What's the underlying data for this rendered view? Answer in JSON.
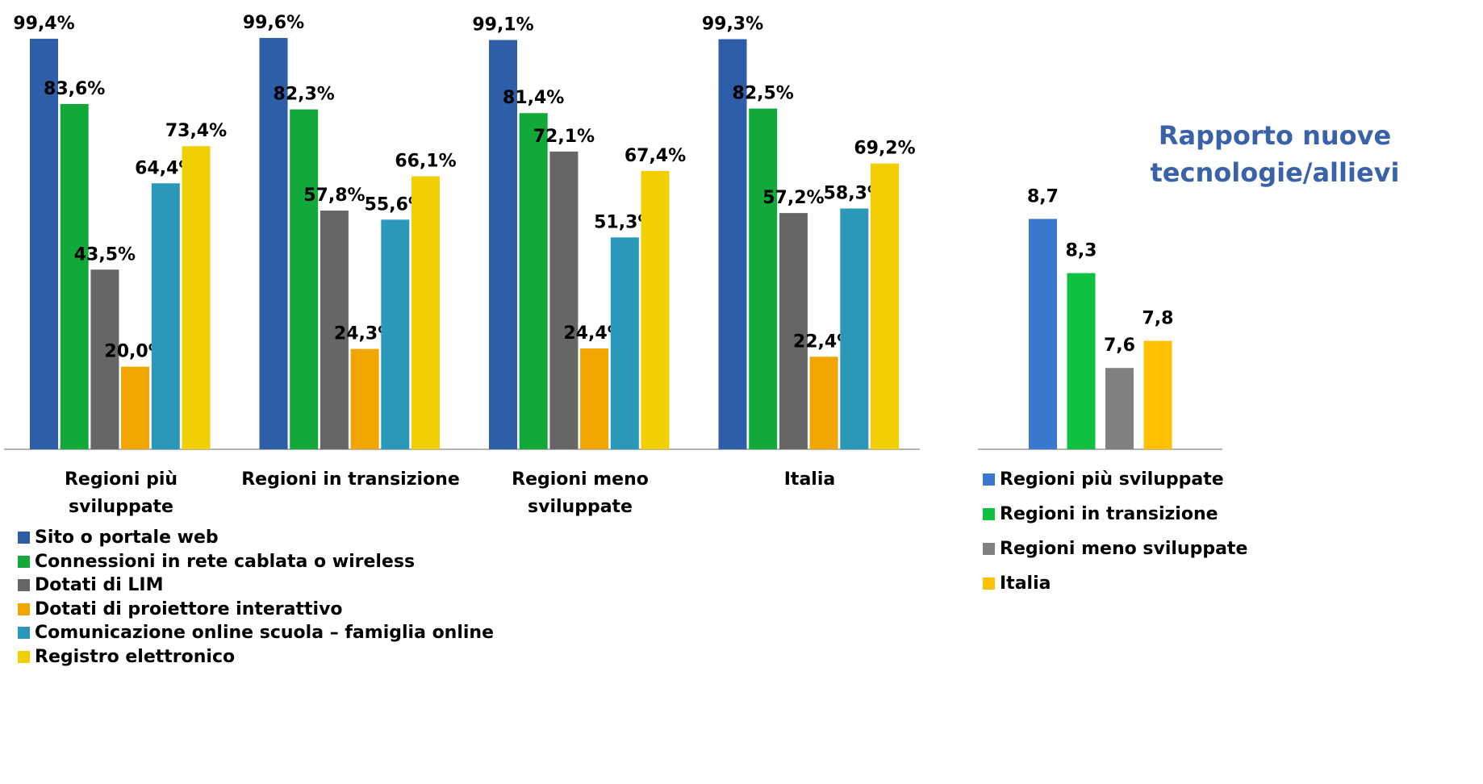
{
  "chart_data": [
    {
      "type": "bar",
      "categories": [
        "Regioni più sviluppate",
        "Regioni in transizione",
        "Regioni meno sviluppate",
        "Italia"
      ],
      "series": [
        {
          "name": "Sito o portale web",
          "color": "#2e5ea8",
          "values": [
            99.4,
            99.6,
            99.1,
            99.3
          ],
          "value_labels": [
            "99,4%",
            "99,6%",
            "99,1%",
            "99,3%"
          ]
        },
        {
          "name": "Connessioni in rete cablata o wireless",
          "color": "#12a83a",
          "values": [
            83.6,
            82.3,
            81.4,
            82.5
          ],
          "value_labels": [
            "83,6%",
            "82,3%",
            "81,4%",
            "82,5%"
          ]
        },
        {
          "name": "Dotati di LIM",
          "color": "#666666",
          "values": [
            43.5,
            57.8,
            72.1,
            57.2
          ],
          "value_labels": [
            "43,5%",
            "57,8%",
            "72,1%",
            "57,2%"
          ]
        },
        {
          "name": "Dotati di proiettore interattivo",
          "color": "#f0a500",
          "values": [
            20.0,
            24.3,
            24.4,
            22.4
          ],
          "value_labels": [
            "20,0%",
            "24,3%",
            "24,4%",
            "22,4%"
          ]
        },
        {
          "name": "Comunicazione online scuola – famiglia online",
          "color": "#2a98b8",
          "values": [
            64.4,
            55.6,
            51.3,
            58.3
          ],
          "value_labels": [
            "64,4%",
            "55,6%",
            "51,3%",
            "58,3%"
          ]
        },
        {
          "name": "Registro elettronico",
          "color": "#f2cf00",
          "values": [
            73.4,
            66.1,
            67.4,
            69.2
          ],
          "value_labels": [
            "73,4%",
            "66,1%",
            "67,4%",
            "69,2%"
          ]
        }
      ],
      "ylim": [
        0,
        100
      ]
    },
    {
      "type": "bar",
      "title": "Rapporto nuove tecnologie/allievi",
      "categories": [
        "Regioni più sviluppate",
        "Regioni in transizione",
        "Regioni meno sviluppate",
        "Italia"
      ],
      "values": [
        8.7,
        8.3,
        7.6,
        7.8
      ],
      "value_labels": [
        "8,7",
        "8,3",
        "7,6",
        "7,8"
      ],
      "colors": [
        "#3a78d0",
        "#10c040",
        "#808080",
        "#ffc000"
      ],
      "ylim": [
        7,
        9
      ]
    }
  ]
}
